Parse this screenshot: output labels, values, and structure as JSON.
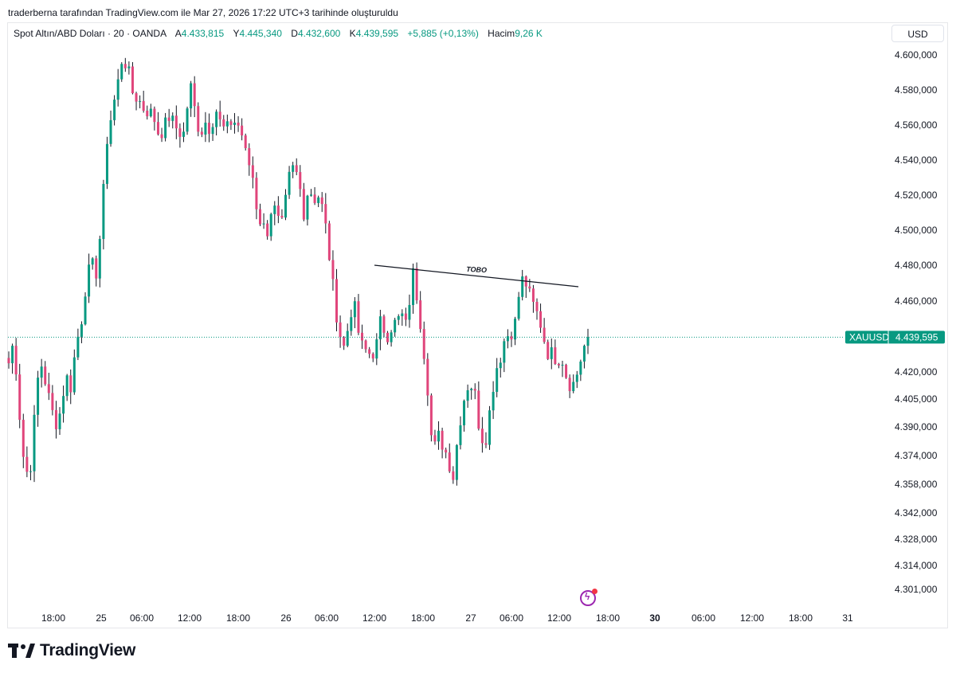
{
  "header": {
    "attribution": "traderberna tarafından TradingView.com ile Mar 27, 2026 17:22 UTC+3 tarihinde oluşturuldu"
  },
  "legend": {
    "symbol": "Spot Altın/ABD Doları · 20 · OANDA",
    "open_label": "A",
    "open_value": "4.433,815",
    "high_label": "Y",
    "high_value": "4.445,340",
    "low_label": "D",
    "low_value": "4.432,600",
    "close_label": "K",
    "close_value": "4.439,595",
    "change": "+5,885 (+0,13%)",
    "volume_label": "Hacim",
    "volume_value": "9,26 K"
  },
  "currency_button": "USD",
  "price_tag": {
    "symbol": "XAUUSD",
    "value": "4.439,595"
  },
  "footer": {
    "brand": "TradingView"
  },
  "colors": {
    "up": "#089981",
    "down": "#e0457b",
    "price_line": "#089981"
  },
  "chart_data": {
    "type": "candlestick",
    "title": "",
    "price_axis_ticks": [
      "4.600,000",
      "4.580,000",
      "4.560,000",
      "4.540,000",
      "4.520,000",
      "4.500,000",
      "4.480,000",
      "4.460,000",
      "4.420,000",
      "4.405,000",
      "4.390,000",
      "4.374,000",
      "4.358,000",
      "4.342,000",
      "4.328,000",
      "4.314,000",
      "4.301,000"
    ],
    "price_axis_values": [
      4600,
      4580,
      4560,
      4540,
      4520,
      4500,
      4480,
      4460,
      4420,
      4405,
      4390,
      4374,
      4358,
      4342,
      4328,
      4314,
      4301
    ],
    "time_axis_ticks": [
      {
        "label": "18:00",
        "bold": false
      },
      {
        "label": "25",
        "bold": false
      },
      {
        "label": "06:00",
        "bold": false
      },
      {
        "label": "12:00",
        "bold": false
      },
      {
        "label": "18:00",
        "bold": false
      },
      {
        "label": "26",
        "bold": false
      },
      {
        "label": "06:00",
        "bold": false
      },
      {
        "label": "12:00",
        "bold": false
      },
      {
        "label": "18:00",
        "bold": false
      },
      {
        "label": "27",
        "bold": false
      },
      {
        "label": "06:00",
        "bold": false
      },
      {
        "label": "12:00",
        "bold": false
      },
      {
        "label": "18:00",
        "bold": false
      },
      {
        "label": "30",
        "bold": true
      },
      {
        "label": "06:00",
        "bold": false
      },
      {
        "label": "12:00",
        "bold": false
      },
      {
        "label": "18:00",
        "bold": false
      },
      {
        "label": "31",
        "bold": false
      }
    ],
    "last_price": 4439.595,
    "anchors": [
      4425,
      4438,
      4400,
      4368,
      4362,
      4395,
      4428,
      4416,
      4402,
      4392,
      4398,
      4418,
      4412,
      4435,
      4448,
      4472,
      4480,
      4476,
      4508,
      4552,
      4568,
      4582,
      4600,
      4592,
      4578,
      4575,
      4570,
      4568,
      4565,
      4555,
      4558,
      4565,
      4560,
      4556,
      4555,
      4585,
      4568,
      4555,
      4562,
      4558,
      4570,
      4560,
      4556,
      4562,
      4562,
      4556,
      4540,
      4535,
      4512,
      4502,
      4500,
      4516,
      4505,
      4502,
      4528,
      4535,
      4530,
      4510,
      4525,
      4518,
      4520,
      4508,
      4485,
      4460,
      4442,
      4432,
      4455,
      4455,
      4435,
      4432,
      4430,
      4433,
      4450,
      4440,
      4446,
      4448,
      4452,
      4444,
      4478,
      4462,
      4440,
      4412,
      4374,
      4385,
      4380,
      4372,
      4362,
      4390,
      4405,
      4415,
      4410,
      4390,
      4380,
      4398,
      4420,
      4428,
      4440,
      4442,
      4448,
      4472,
      4470,
      4460,
      4454,
      4446,
      4432,
      4430,
      4428,
      4428,
      4416,
      4412,
      4420,
      4432,
      4440
    ],
    "trendline": {
      "label": "TOBO",
      "start": 4480,
      "end": 4468
    }
  }
}
